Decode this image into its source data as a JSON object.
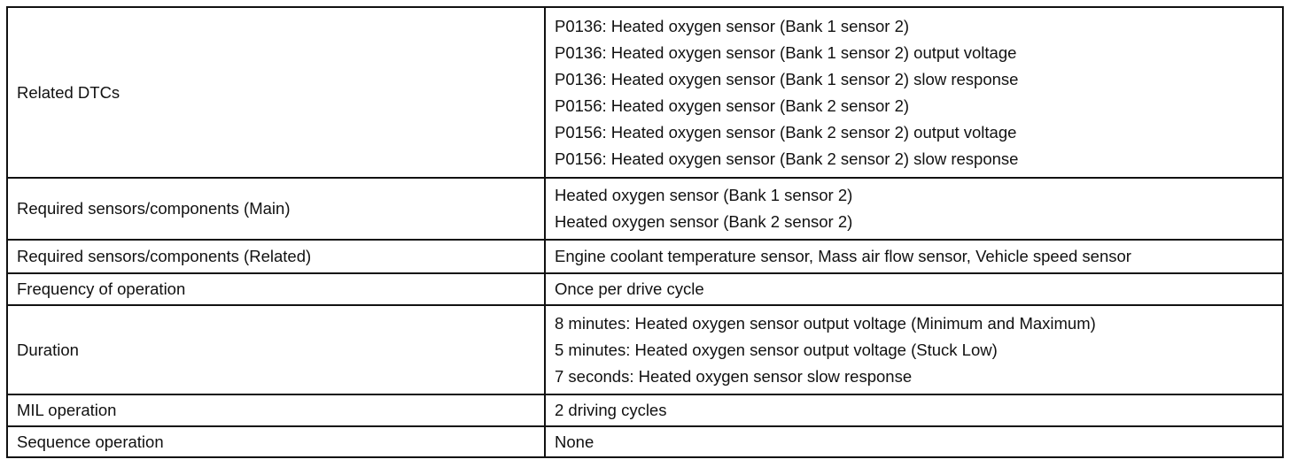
{
  "rows": [
    {
      "label": "Related DTCs",
      "values": [
        "P0136: Heated oxygen sensor (Bank 1 sensor 2)",
        "P0136: Heated oxygen sensor (Bank 1 sensor 2) output voltage",
        "P0136: Heated oxygen sensor (Bank 1 sensor 2) slow response",
        "P0156: Heated oxygen sensor (Bank 2 sensor 2)",
        "P0156: Heated oxygen sensor (Bank 2 sensor 2) output voltage",
        "P0156: Heated oxygen sensor (Bank 2 sensor 2) slow response"
      ]
    },
    {
      "label": "Required sensors/components (Main)",
      "values": [
        "Heated oxygen sensor (Bank 1 sensor 2)",
        "Heated oxygen sensor (Bank 2 sensor 2)"
      ]
    },
    {
      "label": "Required sensors/components (Related)",
      "values": [
        "Engine coolant temperature sensor, Mass air flow sensor, Vehicle speed sensor"
      ]
    },
    {
      "label": "Frequency of operation",
      "values": [
        "Once per drive cycle"
      ]
    },
    {
      "label": "Duration",
      "values": [
        "8 minutes: Heated oxygen sensor output voltage (Minimum and Maximum)",
        "5 minutes: Heated oxygen sensor output voltage (Stuck Low)",
        "7 seconds: Heated oxygen sensor slow response"
      ]
    },
    {
      "label": "MIL operation",
      "values": [
        "2 driving cycles"
      ]
    },
    {
      "label": "Sequence operation",
      "values": [
        "None"
      ]
    }
  ]
}
